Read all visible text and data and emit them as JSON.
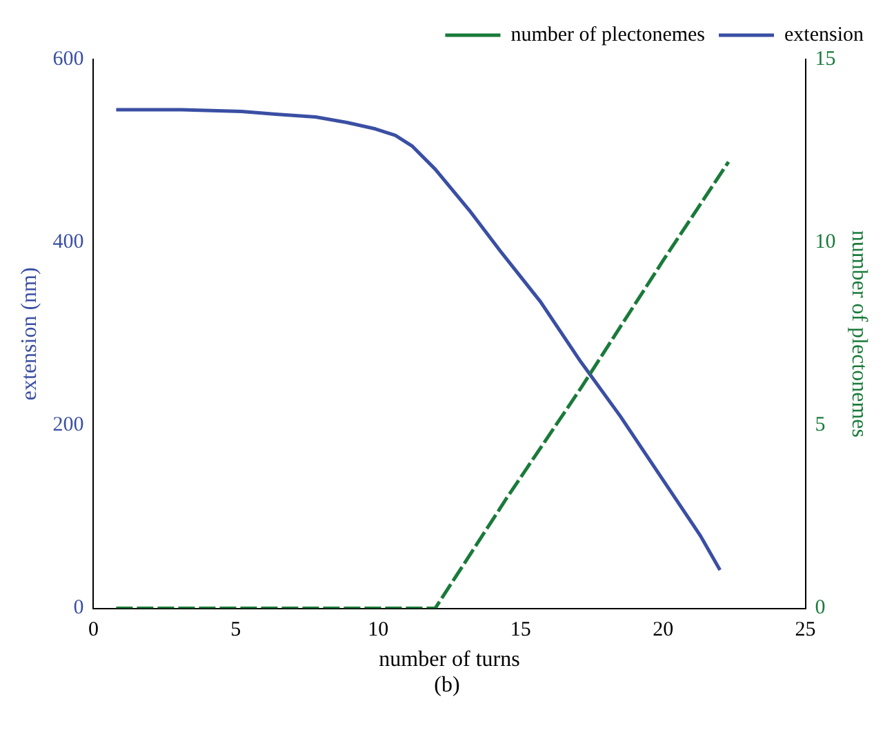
{
  "chart_data": {
    "type": "line",
    "xlabel": "number of turns",
    "ylabel": "extension (nm)",
    "y2label": "number of plectonemes",
    "annotations": [
      "(b)"
    ],
    "xlim": [
      0,
      25
    ],
    "xticks": [
      0,
      5,
      10,
      15,
      20,
      25
    ],
    "ylim": [
      0,
      600
    ],
    "yticks": [
      0,
      200,
      400,
      600
    ],
    "y2lim": [
      0,
      15
    ],
    "y2ticks": [
      0,
      5,
      10,
      15
    ],
    "grid": false,
    "legend": "top right",
    "marker": "none",
    "series": [
      {
        "name": "number of plectonemes",
        "color": "#1a7a3a",
        "axis": "y2",
        "line_style": "dashed",
        "x": [
          0.8,
          12.0,
          14.5,
          17.1,
          20.0,
          22.3
        ],
        "values": [
          0,
          0,
          3.0,
          6.0,
          9.5,
          12.2
        ]
      },
      {
        "name": "extension",
        "color": "#3a4fa3",
        "axis": "y",
        "line_style": "solid",
        "x": [
          0.8,
          3.1,
          5.2,
          6.4,
          7.8,
          8.9,
          9.9,
          10.6,
          11.2,
          12.0,
          13.2,
          14.3,
          15.7,
          17.1,
          18.5,
          19.9,
          21.3,
          22.0
        ],
        "values": [
          545,
          545,
          543,
          540,
          537,
          531,
          524,
          517,
          505,
          480,
          435,
          390,
          335,
          270,
          210,
          145,
          80,
          42
        ]
      }
    ]
  }
}
